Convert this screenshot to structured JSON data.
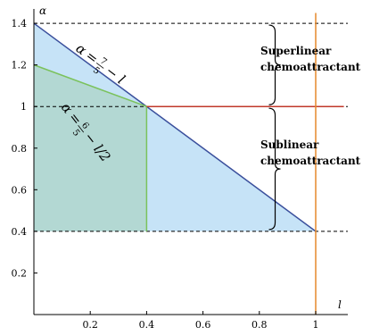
{
  "chart_data": {
    "type": "area",
    "title": "",
    "xlabel": "l",
    "ylabel": "α",
    "xlim": [
      0,
      1.1
    ],
    "ylim": [
      0,
      1.45
    ],
    "x_ticks": [
      "0.2",
      "0.4",
      "0.6",
      "0.8",
      "1"
    ],
    "y_ticks": [
      "0.2",
      "0.4",
      "0.6",
      "0.8",
      "1",
      "1.2",
      "1.4"
    ],
    "top_caption": "",
    "regions": [
      {
        "name": "outer-triangle",
        "color": "#c6e3f7",
        "polygon": [
          [
            0,
            1.4
          ],
          [
            1,
            0.4
          ],
          [
            0,
            0.4
          ]
        ]
      },
      {
        "name": "inner-region",
        "color": "#b3d8d3",
        "polygon": [
          [
            0,
            1.2
          ],
          [
            0.4,
            1.0
          ],
          [
            0.4,
            0.4
          ],
          [
            0,
            0.4
          ]
        ]
      }
    ],
    "lines": [
      {
        "name": "alpha-line-outer",
        "color": "#3a4f9c",
        "points": [
          [
            0,
            1.4
          ],
          [
            1,
            0.4
          ]
        ]
      },
      {
        "name": "alpha-line-inner",
        "color": "#7bc25c",
        "points": [
          [
            0,
            1.2
          ],
          [
            0.4,
            1.0
          ],
          [
            0.4,
            0.4
          ]
        ]
      },
      {
        "name": "alpha-one-line",
        "color": "#c0392b",
        "points": [
          [
            0.4,
            1.0
          ],
          [
            1.1,
            1.0
          ]
        ]
      },
      {
        "name": "l-one-line",
        "color": "#e6892b",
        "points": [
          [
            1,
            0
          ],
          [
            1,
            1.45
          ]
        ]
      }
    ],
    "dashed_lines": [
      {
        "name": "dashed-1-4",
        "y": 1.4
      },
      {
        "name": "dashed-0-4",
        "y": 0.4
      },
      {
        "name": "dashed-1-0",
        "y": 1.0
      }
    ],
    "braces": [
      {
        "name": "brace-superlinear",
        "l": 0.72,
        "y_range": [
          1.0,
          1.4
        ],
        "label": "Superlinear chemoattractant"
      },
      {
        "name": "brace-sublinear",
        "l": 0.72,
        "y_range": [
          0.4,
          1.0
        ],
        "label": "Sublinear chemoattractant"
      }
    ],
    "annotations": [
      {
        "name": "formula-outer",
        "text_var": "α",
        "text_eq": "=",
        "frac_num": "7",
        "frac_den": "5",
        "text_tail": "− l"
      },
      {
        "name": "formula-inner",
        "text_var": "α",
        "text_eq": "=",
        "frac_num": "6",
        "frac_den": "5",
        "text_tail": "− l/2"
      }
    ]
  }
}
